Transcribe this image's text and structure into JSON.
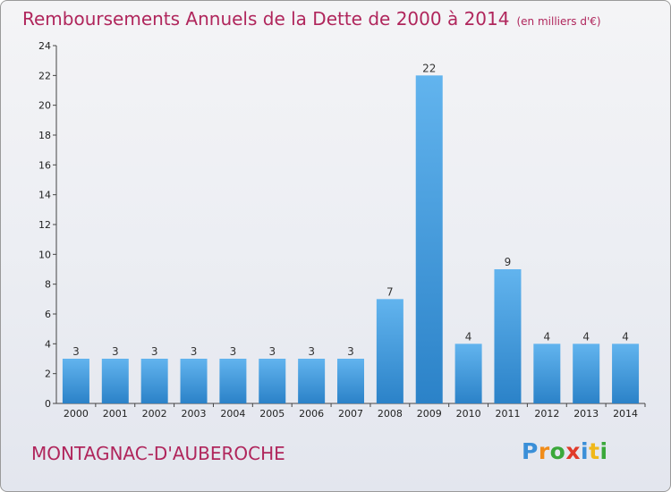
{
  "header": {
    "title": "Remboursements Annuels de la Dette de 2000 à 2014",
    "unit": "(en milliers d'€)"
  },
  "footer": {
    "commune": "MONTAGNAC-D'AUBEROCHE",
    "logo": {
      "text": "Proxiti",
      "letters": [
        {
          "ch": "P",
          "color": "#3a8fd8"
        },
        {
          "ch": "r",
          "color": "#f08c1a"
        },
        {
          "ch": "o",
          "color": "#3aa83a"
        },
        {
          "ch": "x",
          "color": "#e03a2a"
        },
        {
          "ch": "i",
          "color": "#3a8fd8"
        },
        {
          "ch": "t",
          "color": "#f0b81a"
        },
        {
          "ch": "i",
          "color": "#3aa83a"
        }
      ]
    }
  },
  "colors": {
    "title": "#b0265c",
    "bar_light": "#62b4ee",
    "bar_dark": "#2b82c8"
  },
  "chart_data": {
    "type": "bar",
    "title": "Remboursements Annuels de la Dette de 2000 à 2014",
    "subtitle": "(en milliers d'€)",
    "categories": [
      "2000",
      "2001",
      "2002",
      "2003",
      "2004",
      "2005",
      "2006",
      "2007",
      "2008",
      "2009",
      "2010",
      "2011",
      "2012",
      "2013",
      "2014"
    ],
    "values": [
      3,
      3,
      3,
      3,
      3,
      3,
      3,
      3,
      7,
      22,
      4,
      9,
      4,
      4,
      4
    ],
    "ylim": [
      0,
      24
    ],
    "yticks": [
      0,
      2,
      4,
      6,
      8,
      10,
      12,
      14,
      16,
      18,
      20,
      22,
      24
    ],
    "grid": false,
    "xlabel": "",
    "ylabel": ""
  }
}
